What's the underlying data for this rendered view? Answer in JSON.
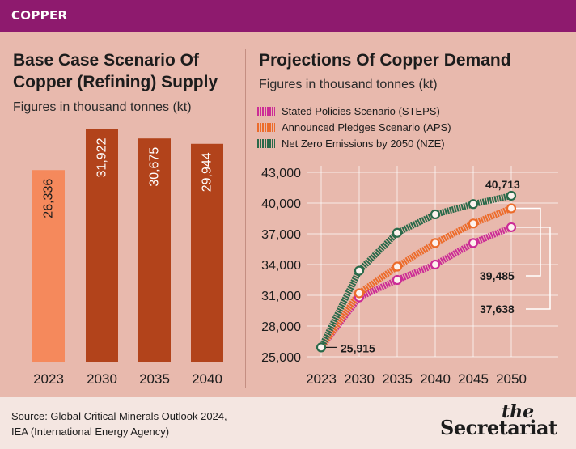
{
  "header": {
    "section": "COPPER"
  },
  "left_panel": {
    "title_line1": "Base Case Scenario Of",
    "title_line2": "Copper (Refining) Supply",
    "subtitle": "Figures in thousand tonnes (kt)"
  },
  "right_panel": {
    "title": "Projections Of Copper Demand",
    "subtitle": "Figures in thousand tonnes (kt)"
  },
  "footer": {
    "source_line1": "Source: Global Critical Minerals Outlook 2024,",
    "source_line2": "IEA (International Energy Agency)",
    "logo_top": "the",
    "logo_bottom": "Secretariat"
  },
  "colors": {
    "highlight_bar": "#f5895c",
    "bar": "#b2431b",
    "steps": "#cc2c96",
    "aps": "#ec6b2a",
    "nze": "#2a6a4a"
  },
  "chart_data": [
    {
      "type": "bar",
      "title": "Base Case Scenario Of Copper (Refining) Supply",
      "ylabel": "Figures in thousand tonnes (kt)",
      "categories": [
        "2023",
        "2030",
        "2035",
        "2040"
      ],
      "values": [
        26336,
        31922,
        30675,
        29944
      ],
      "value_labels": [
        "26,336",
        "31,922",
        "30,675",
        "29,944"
      ],
      "highlight_index": 0,
      "grid": false
    },
    {
      "type": "line",
      "title": "Projections Of Copper Demand",
      "ylabel": "Figures in thousand tonnes (kt)",
      "x": [
        "2023",
        "2030",
        "2035",
        "2040",
        "2045",
        "2050"
      ],
      "ylim": [
        25000,
        43000
      ],
      "yticks": [
        25000,
        28000,
        31000,
        34000,
        37000,
        40000,
        43000
      ],
      "ytick_labels": [
        "25,000",
        "28,000",
        "31,000",
        "34,000",
        "37,000",
        "40,000",
        "43,000"
      ],
      "legend_position": "top-left",
      "grid": true,
      "series": [
        {
          "name": "Stated Policies Scenario (STEPS)",
          "key": "steps",
          "values": [
            25915,
            30800,
            32500,
            34000,
            36100,
            37638
          ]
        },
        {
          "name": "Announced Pledges Scenario (APS)",
          "key": "aps",
          "values": [
            25915,
            31200,
            33800,
            36100,
            38000,
            39485
          ]
        },
        {
          "name": "Net Zero Emissions by 2050 (NZE)",
          "key": "nze",
          "values": [
            25915,
            33400,
            37100,
            38900,
            39900,
            40713
          ]
        }
      ],
      "annotations": [
        {
          "text": "25,915",
          "series": "nze",
          "index": 0
        },
        {
          "text": "40,713",
          "series": "nze",
          "index": 5
        },
        {
          "text": "39,485",
          "series": "aps",
          "index": 5
        },
        {
          "text": "37,638",
          "series": "steps",
          "index": 5
        }
      ]
    }
  ]
}
